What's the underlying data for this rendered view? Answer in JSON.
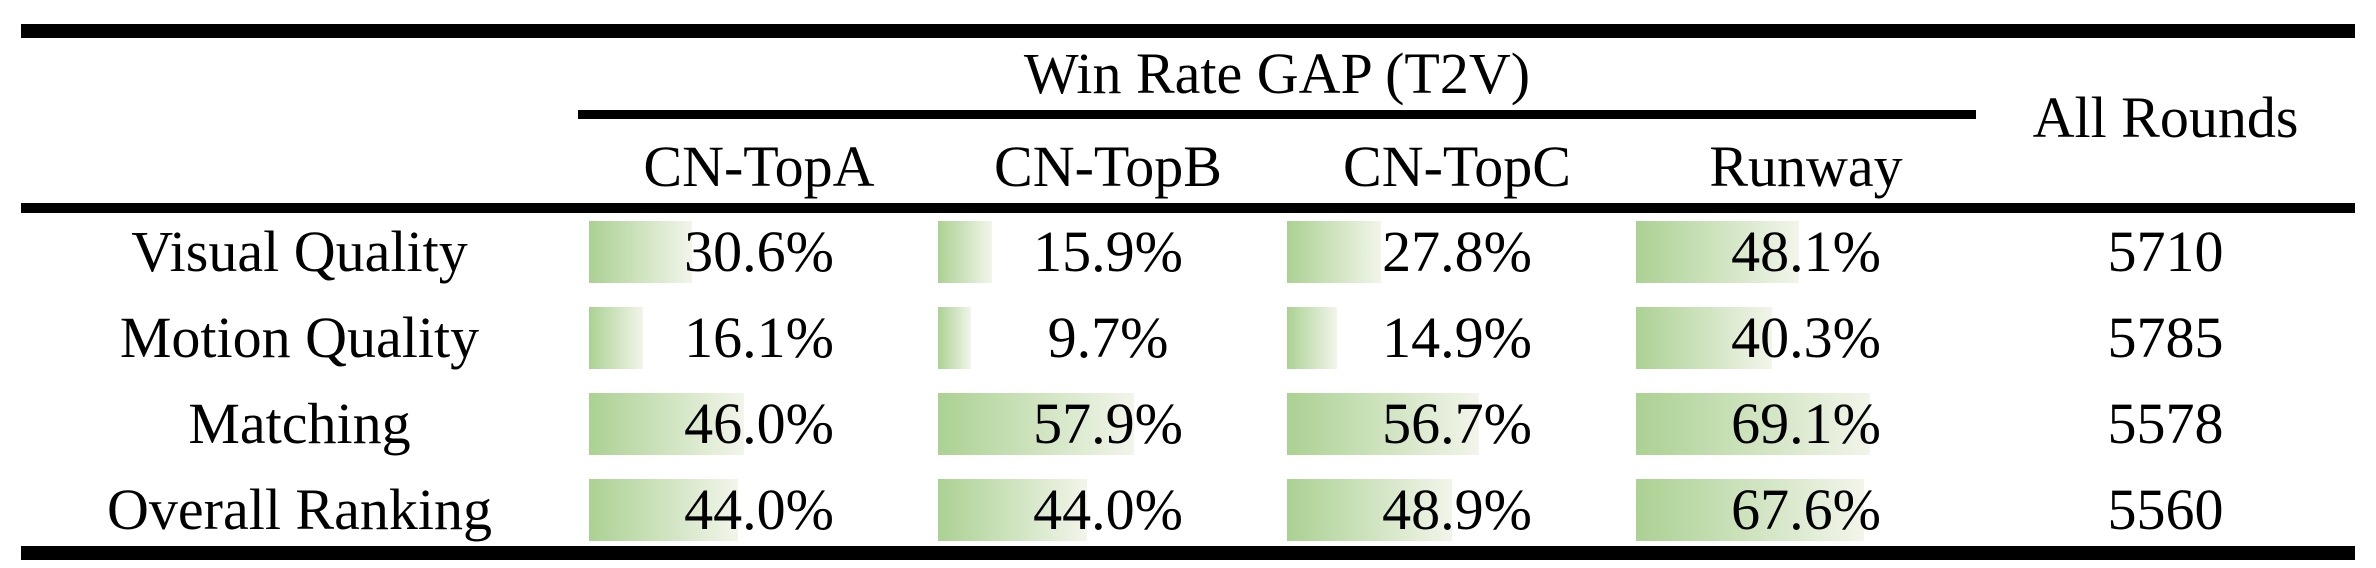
{
  "title": "Win Rate GAP (T2V)",
  "all_rounds_label": "All Rounds",
  "columns": [
    "CN-TopA",
    "CN-TopB",
    "CN-TopC",
    "Runway"
  ],
  "rows": [
    {
      "label": "Visual Quality",
      "cells": [
        {
          "pct": 30.6,
          "text": "30.6%"
        },
        {
          "pct": 15.9,
          "text": "15.9%"
        },
        {
          "pct": 27.8,
          "text": "27.8%"
        },
        {
          "pct": 48.1,
          "text": "48.1%"
        }
      ],
      "rounds": "5710"
    },
    {
      "label": "Motion Quality",
      "cells": [
        {
          "pct": 16.1,
          "text": "16.1%"
        },
        {
          "pct": 9.7,
          "text": "9.7%"
        },
        {
          "pct": 14.9,
          "text": "14.9%"
        },
        {
          "pct": 40.3,
          "text": "40.3%"
        }
      ],
      "rounds": "5785"
    },
    {
      "label": "Matching",
      "cells": [
        {
          "pct": 46.0,
          "text": "46.0%"
        },
        {
          "pct": 57.9,
          "text": "57.9%"
        },
        {
          "pct": 56.7,
          "text": "56.7%"
        },
        {
          "pct": 69.1,
          "text": "69.1%"
        }
      ],
      "rounds": "5578"
    },
    {
      "label": "Overall Ranking",
      "cells": [
        {
          "pct": 44.0,
          "text": "44.0%"
        },
        {
          "pct": 44.0,
          "text": "44.0%"
        },
        {
          "pct": 48.9,
          "text": "48.9%"
        },
        {
          "pct": 67.6,
          "text": "67.6%"
        }
      ],
      "rounds": "5560"
    }
  ],
  "colors": {
    "bar_gradient_start": "#abd193",
    "bar_gradient_end": "#f2f5ea",
    "rule": "#000000",
    "text": "#000000"
  },
  "chart_data": {
    "type": "table",
    "title": "Win Rate GAP (T2V)",
    "categories": [
      "Visual Quality",
      "Motion Quality",
      "Matching",
      "Overall Ranking"
    ],
    "series": [
      {
        "name": "CN-TopA",
        "values": [
          30.6,
          16.1,
          46.0,
          44.0
        ]
      },
      {
        "name": "CN-TopB",
        "values": [
          15.9,
          9.7,
          57.9,
          44.0
        ]
      },
      {
        "name": "CN-TopC",
        "values": [
          27.8,
          14.9,
          56.7,
          48.9
        ]
      },
      {
        "name": "Runway",
        "values": [
          48.1,
          40.3,
          69.1,
          67.6
        ]
      }
    ],
    "all_rounds": {
      "name": "All Rounds",
      "values": [
        5710,
        5785,
        5578,
        5560
      ]
    },
    "unit": "%",
    "layout_hint": "in-cell green gradient data bars, length proportional to percentage"
  }
}
